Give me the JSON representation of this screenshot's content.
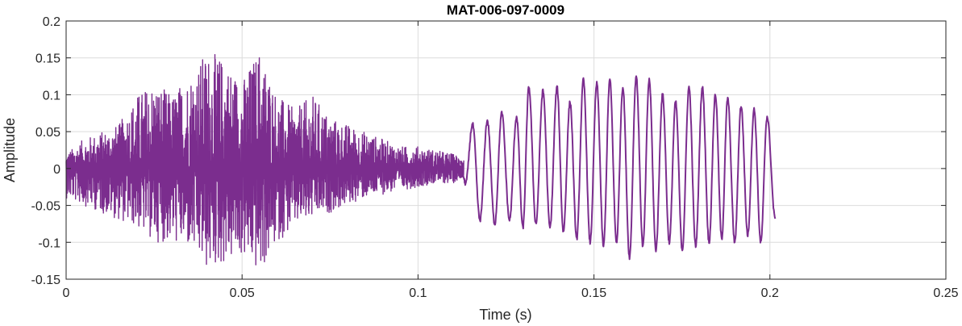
{
  "chart_data": {
    "type": "line",
    "title": "MAT-006-097-0009",
    "xlabel": "Time (s)",
    "ylabel": "Amplitude",
    "xlim": [
      0,
      0.25
    ],
    "ylim": [
      -0.15,
      0.2
    ],
    "xticks": [
      0,
      0.05,
      0.1,
      0.15,
      0.2,
      0.25
    ],
    "xtick_labels": [
      "0",
      "0.05",
      "0.1",
      "0.15",
      "0.2",
      "0.25"
    ],
    "yticks": [
      -0.15,
      -0.1,
      -0.05,
      0,
      0.05,
      0.1,
      0.15,
      0.2
    ],
    "ytick_labels": [
      "-0.15",
      "-0.1",
      "-0.05",
      "0",
      "0.05",
      "0.1",
      "0.15",
      "0.2"
    ],
    "grid": true,
    "series": [
      {
        "color": "#7b2d8e",
        "envelope": [
          {
            "t": 0.0,
            "max": 0.02,
            "min": -0.04
          },
          {
            "t": 0.005,
            "max": 0.04,
            "min": -0.05
          },
          {
            "t": 0.01,
            "max": 0.05,
            "min": -0.06
          },
          {
            "t": 0.015,
            "max": 0.06,
            "min": -0.07
          },
          {
            "t": 0.02,
            "max": 0.1,
            "min": -0.08
          },
          {
            "t": 0.025,
            "max": 0.12,
            "min": -0.1
          },
          {
            "t": 0.03,
            "max": 0.1,
            "min": -0.1
          },
          {
            "t": 0.035,
            "max": 0.13,
            "min": -0.11
          },
          {
            "t": 0.04,
            "max": 0.16,
            "min": -0.14
          },
          {
            "t": 0.045,
            "max": 0.15,
            "min": -0.13
          },
          {
            "t": 0.05,
            "max": 0.12,
            "min": -0.12
          },
          {
            "t": 0.055,
            "max": 0.165,
            "min": -0.145
          },
          {
            "t": 0.06,
            "max": 0.1,
            "min": -0.1
          },
          {
            "t": 0.065,
            "max": 0.08,
            "min": -0.08
          },
          {
            "t": 0.07,
            "max": 0.1,
            "min": -0.07
          },
          {
            "t": 0.075,
            "max": 0.07,
            "min": -0.06
          },
          {
            "t": 0.08,
            "max": 0.06,
            "min": -0.05
          },
          {
            "t": 0.085,
            "max": 0.05,
            "min": -0.04
          },
          {
            "t": 0.09,
            "max": 0.04,
            "min": -0.035
          },
          {
            "t": 0.095,
            "max": 0.03,
            "min": -0.03
          },
          {
            "t": 0.1,
            "max": 0.03,
            "min": -0.025
          },
          {
            "t": 0.105,
            "max": 0.025,
            "min": -0.02
          },
          {
            "t": 0.11,
            "max": 0.02,
            "min": -0.02
          },
          {
            "t": 0.113,
            "max": 0.015,
            "min": -0.01
          }
        ],
        "oscillation": {
          "t_start": 0.112,
          "t_end": 0.2015,
          "end_value": -0.068,
          "peaks": [
            {
              "t": 0.1155,
              "v": 0.06
            },
            {
              "t": 0.1197,
              "v": 0.065
            },
            {
              "t": 0.1238,
              "v": 0.075
            },
            {
              "t": 0.128,
              "v": 0.07
            },
            {
              "t": 0.1315,
              "v": 0.11
            },
            {
              "t": 0.1355,
              "v": 0.105
            },
            {
              "t": 0.1395,
              "v": 0.11
            },
            {
              "t": 0.1432,
              "v": 0.09
            },
            {
              "t": 0.147,
              "v": 0.12
            },
            {
              "t": 0.1508,
              "v": 0.115
            },
            {
              "t": 0.1545,
              "v": 0.12
            },
            {
              "t": 0.1582,
              "v": 0.11
            },
            {
              "t": 0.162,
              "v": 0.125
            },
            {
              "t": 0.1657,
              "v": 0.12
            },
            {
              "t": 0.1695,
              "v": 0.1
            },
            {
              "t": 0.1732,
              "v": 0.09
            },
            {
              "t": 0.177,
              "v": 0.11
            },
            {
              "t": 0.1808,
              "v": 0.11
            },
            {
              "t": 0.1845,
              "v": 0.1
            },
            {
              "t": 0.188,
              "v": 0.095
            },
            {
              "t": 0.1918,
              "v": 0.085
            },
            {
              "t": 0.1955,
              "v": 0.08
            },
            {
              "t": 0.1992,
              "v": 0.07
            }
          ],
          "troughs": [
            {
              "t": 0.1135,
              "v": -0.02
            },
            {
              "t": 0.1176,
              "v": -0.07
            },
            {
              "t": 0.1218,
              "v": -0.075
            },
            {
              "t": 0.126,
              "v": -0.07
            },
            {
              "t": 0.1298,
              "v": -0.08
            },
            {
              "t": 0.1335,
              "v": -0.075
            },
            {
              "t": 0.1375,
              "v": -0.08
            },
            {
              "t": 0.1413,
              "v": -0.085
            },
            {
              "t": 0.1451,
              "v": -0.095
            },
            {
              "t": 0.1489,
              "v": -0.1
            },
            {
              "t": 0.1527,
              "v": -0.105
            },
            {
              "t": 0.1564,
              "v": -0.1
            },
            {
              "t": 0.1601,
              "v": -0.12
            },
            {
              "t": 0.1639,
              "v": -0.105
            },
            {
              "t": 0.1676,
              "v": -0.11
            },
            {
              "t": 0.1714,
              "v": -0.1
            },
            {
              "t": 0.1751,
              "v": -0.11
            },
            {
              "t": 0.1789,
              "v": -0.105
            },
            {
              "t": 0.1827,
              "v": -0.1
            },
            {
              "t": 0.1863,
              "v": -0.095
            },
            {
              "t": 0.19,
              "v": -0.1
            },
            {
              "t": 0.1937,
              "v": -0.09
            },
            {
              "t": 0.1974,
              "v": -0.1
            }
          ]
        }
      }
    ]
  }
}
